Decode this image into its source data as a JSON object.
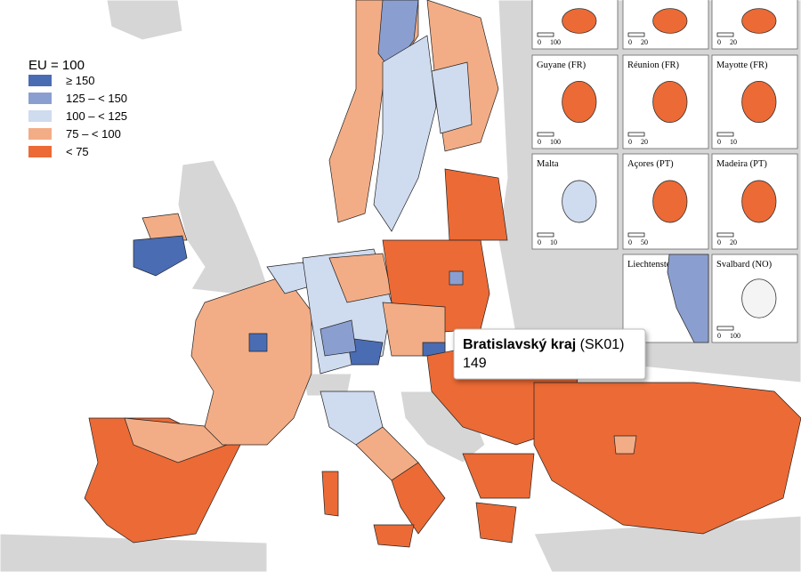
{
  "legend": {
    "title": "EU = 100",
    "items": [
      {
        "label": "≥ 150",
        "color": "#4a6cb3"
      },
      {
        "label": "125 – < 150",
        "color": "#8a9fd0"
      },
      {
        "label": "100 – < 125",
        "color": "#cfdbef"
      },
      {
        "label": "75 – < 100",
        "color": "#f3ad86"
      },
      {
        "label": "< 75",
        "color": "#ec6a35"
      }
    ]
  },
  "insets": [
    {
      "scale": [
        0,
        100
      ]
    },
    {
      "scale": [
        0,
        20
      ]
    },
    {
      "scale": [
        0,
        20
      ]
    },
    {
      "label": "Guyane (FR)",
      "scale": [
        0,
        100
      ]
    },
    {
      "label": "Réunion (FR)",
      "scale": [
        0,
        20
      ]
    },
    {
      "label": "Mayotte (FR)",
      "scale": [
        0,
        10
      ]
    },
    {
      "label": "Malta",
      "scale": [
        0,
        10
      ]
    },
    {
      "label": "Açores (PT)",
      "scale": [
        0,
        50
      ]
    },
    {
      "label": "Madeira (PT)",
      "scale": [
        0,
        20
      ]
    },
    {
      "label": "Liechtenstein"
    },
    {
      "label": "Svalbard (NO)",
      "scale": [
        0,
        100
      ]
    }
  ],
  "tooltip": {
    "name": "Bratislavský kraj",
    "code": "(SK01)",
    "value": 149
  }
}
